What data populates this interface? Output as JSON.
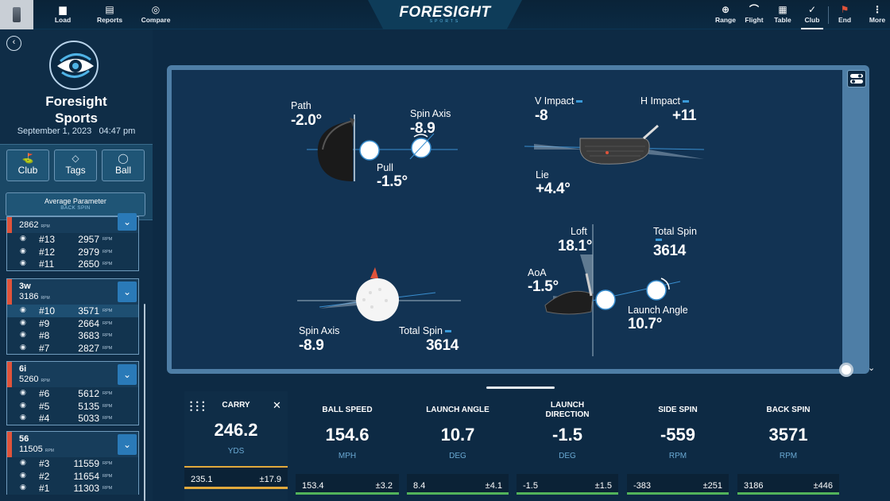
{
  "toolbar": {
    "left": [
      {
        "label": "Load",
        "icon": "folder-icon"
      },
      {
        "label": "Reports",
        "icon": "report-icon"
      },
      {
        "label": "Compare",
        "icon": "compare-icon"
      }
    ],
    "brand": "FORESIGHT",
    "brand_sub": "SPORTS",
    "right": [
      {
        "label": "Range",
        "icon": "globe-icon"
      },
      {
        "label": "Flight",
        "icon": "flight-icon"
      },
      {
        "label": "Table",
        "icon": "table-icon"
      },
      {
        "label": "Club",
        "icon": "club-icon",
        "active": true
      },
      {
        "label": "End",
        "icon": "end-icon"
      },
      {
        "label": "More",
        "icon": "more-icon"
      }
    ]
  },
  "sidebar": {
    "org_name_1": "Foresight",
    "org_name_2": "Sports",
    "date": "September 1, 2023",
    "time": "04:47 pm",
    "filters": {
      "club": "Club",
      "tags": "Tags",
      "ball": "Ball"
    },
    "avg_param": {
      "label": "Average Parameter",
      "value": "BACK SPIN"
    },
    "groups": [
      {
        "club": "",
        "avg": "2862",
        "unit": "RPM",
        "shots": [
          {
            "num": "#13",
            "value": "2957",
            "unit": "RPM"
          },
          {
            "num": "#12",
            "value": "2979",
            "unit": "RPM"
          },
          {
            "num": "#11",
            "value": "2650",
            "unit": "RPM"
          }
        ]
      },
      {
        "club": "3w",
        "avg": "3186",
        "unit": "RPM",
        "shots": [
          {
            "num": "#10",
            "value": "3571",
            "unit": "RPM"
          },
          {
            "num": "#9",
            "value": "2664",
            "unit": "RPM"
          },
          {
            "num": "#8",
            "value": "3683",
            "unit": "RPM"
          },
          {
            "num": "#7",
            "value": "2827",
            "unit": "RPM"
          }
        ]
      },
      {
        "club": "6i",
        "avg": "5260",
        "unit": "RPM",
        "shots": [
          {
            "num": "#6",
            "value": "5612",
            "unit": "RPM"
          },
          {
            "num": "#5",
            "value": "5135",
            "unit": "RPM"
          },
          {
            "num": "#4",
            "value": "5033",
            "unit": "RPM"
          }
        ]
      },
      {
        "club": "56",
        "avg": "11505",
        "unit": "RPM",
        "shots": [
          {
            "num": "#3",
            "value": "11559",
            "unit": "RPM"
          },
          {
            "num": "#2",
            "value": "11654",
            "unit": "RPM"
          },
          {
            "num": "#1",
            "value": "11303",
            "unit": "RPM"
          }
        ]
      }
    ]
  },
  "viz": {
    "path_label": "Path",
    "path_value": "-2.0°",
    "spin_axis_label": "Spin Axis",
    "spin_axis_value": "-8.9",
    "pull_label": "Pull",
    "pull_value": "-1.5°",
    "v_impact_label": "V Impact",
    "v_impact_value": "-8",
    "h_impact_label": "H Impact",
    "h_impact_value": "+11",
    "lie_label": "Lie",
    "lie_value": "+4.4°",
    "loft_label": "Loft",
    "loft_value": "18.1°",
    "total_spin_label": "Total Spin",
    "total_spin_value": "3614",
    "aoa_label": "AoA",
    "aoa_value": "-1.5°",
    "launch_angle_label": "Launch Angle",
    "launch_angle_value": "10.7°",
    "spin_axis2_label": "Spin Axis",
    "spin_axis2_value": "-8.9",
    "total_spin2_label": "Total Spin",
    "total_spin2_value": "3614"
  },
  "metrics": {
    "carry": {
      "title": "CARRY",
      "value": "246.2",
      "unit": "YDS",
      "avg": "235.1",
      "dev": "±17.9"
    },
    "cards": [
      {
        "title": "BALL SPEED",
        "value": "154.6",
        "unit": "MPH",
        "avg": "153.4",
        "dev": "±3.2"
      },
      {
        "title": "LAUNCH ANGLE",
        "value": "10.7",
        "unit": "DEG",
        "avg": "8.4",
        "dev": "±4.1"
      },
      {
        "title": "LAUNCH DIRECTION",
        "value": "-1.5",
        "unit": "DEG",
        "avg": "-1.5",
        "dev": "±1.5"
      },
      {
        "title": "SIDE SPIN",
        "value": "-559",
        "unit": "RPM",
        "avg": "-383",
        "dev": "±251"
      },
      {
        "title": "BACK SPIN",
        "value": "3571",
        "unit": "RPM",
        "avg": "3186",
        "dev": "±446"
      }
    ]
  }
}
